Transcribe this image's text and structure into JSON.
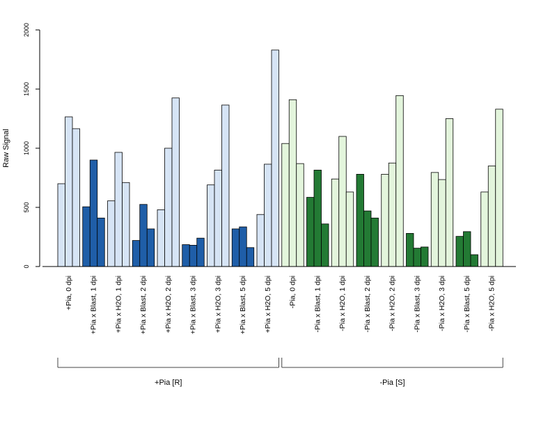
{
  "chart_data": {
    "type": "bar",
    "ylabel": "Raw Signal",
    "ylim": [
      0,
      2000
    ],
    "yticks": [
      0,
      500,
      1000,
      1500,
      2000
    ],
    "categories": [
      "+Pia, 0 dpi",
      "+Pia x Blast, 1 dpi",
      "+Pia x H2O, 1 dpi",
      "+Pia x Blast, 2 dpi",
      "+Pia x H2O, 2 dpi",
      "+Pia x Blast, 3 dpi",
      "+Pia x H2O, 3 dpi",
      "+Pia x Blast, 5 dpi",
      "+Pia x H2O, 5 dpi",
      "-Pia, 0 dpi",
      "-Pia x Blast, 1 dpi",
      "-Pia x H2O, 1 dpi",
      "-Pia x Blast, 2 dpi",
      "-Pia x H2O, 2 dpi",
      "-Pia x Blast, 3 dpi",
      "-Pia x H2O, 3 dpi",
      "-Pia x Blast, 5 dpi",
      "-Pia x H2O, 5 dpi"
    ],
    "values": [
      [
        700,
        1265,
        1165
      ],
      [
        505,
        900,
        410
      ],
      [
        555,
        965,
        710
      ],
      [
        220,
        525,
        318
      ],
      [
        480,
        1000,
        1425
      ],
      [
        185,
        180,
        240
      ],
      [
        690,
        815,
        1365
      ],
      [
        318,
        335,
        160
      ],
      [
        440,
        865,
        1830
      ],
      [
        1040,
        1410,
        870
      ],
      [
        585,
        815,
        360
      ],
      [
        740,
        1100,
        630
      ],
      [
        780,
        470,
        410
      ],
      [
        780,
        875,
        1445
      ],
      [
        280,
        155,
        165
      ],
      [
        795,
        735,
        1250
      ],
      [
        255,
        295,
        100
      ],
      [
        630,
        850,
        1330
      ]
    ],
    "colors": {
      "pos_blast": "#1f5ea8",
      "pos_other": "#d6e4f5",
      "neg_blast": "#237a34",
      "neg_other": "#e3f5dc",
      "stroke": "#000000"
    },
    "groups": [
      {
        "label": "+Pia [R]",
        "from": 0,
        "to": 8
      },
      {
        "label": "-Pia [S]",
        "from": 9,
        "to": 17
      }
    ]
  }
}
